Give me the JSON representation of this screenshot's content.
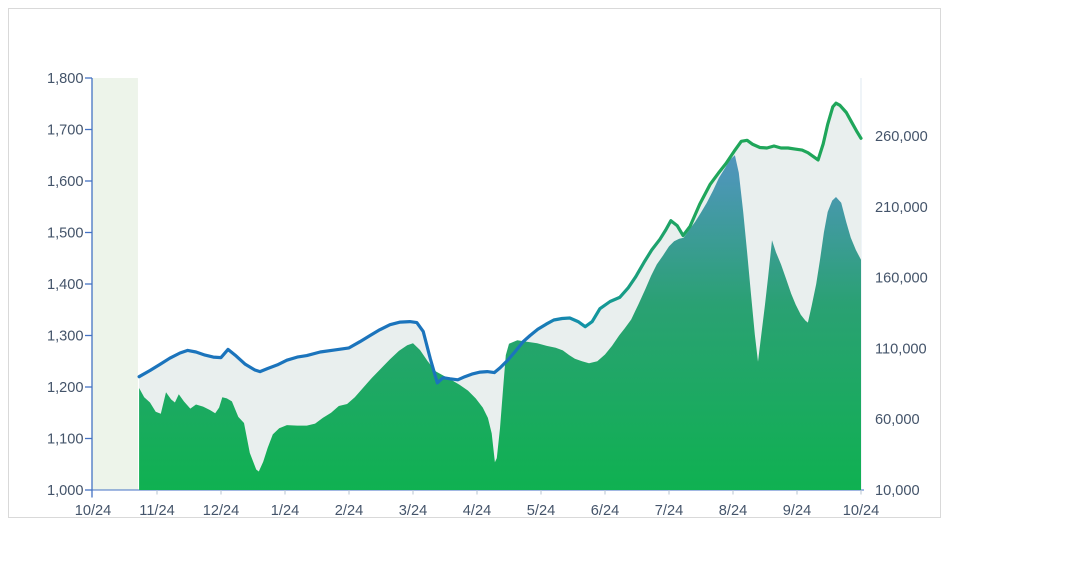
{
  "window": {
    "type": "excel-style-combo-chart",
    "title": ""
  },
  "colors": {
    "frame_border": "#d9d9d9",
    "axis_line_blue": "#4472c4",
    "axis_text": "#44546a",
    "month_tick": "#b7c4d2",
    "right_edge_line": "#dfe9f2",
    "highlight_band_fill": "#edf4ea",
    "line_fill_pale": "#e9efee",
    "line_blue": "#1b74bc",
    "line_teal": "#1295a5",
    "line_green": "#1fa65a",
    "area_gradient_top": "#6691d3",
    "area_gradient_upper": "#4b97b4",
    "area_gradient_mid": "#2aa173",
    "area_gradient_bottom": "#0fb151"
  },
  "chart_data": {
    "type": "combo",
    "title": "",
    "x_axis": {
      "labels": [
        "10/24",
        "11/24",
        "12/24",
        "1/24",
        "2/24",
        "3/24",
        "4/24",
        "5/24",
        "6/24",
        "7/24",
        "8/24",
        "9/24",
        "10/24"
      ],
      "range_months": [
        0,
        12
      ]
    },
    "y_axis_left": {
      "min": 1000,
      "max": 1800,
      "step": 100,
      "labels": [
        "1,000",
        "1,100",
        "1,200",
        "1,300",
        "1,400",
        "1,500",
        "1,600",
        "1,700",
        "1,800"
      ]
    },
    "y_axis_right": {
      "min": 10000,
      "step": 50000,
      "labels": [
        "10,000",
        "60,000",
        "110,000",
        "160,000",
        "210,000",
        "260,000"
      ]
    },
    "highlight_band": {
      "start_month": 0,
      "end_month": 0.71
    },
    "grid": "off",
    "legend": "none",
    "series": [
      {
        "name": "price-line",
        "type": "line",
        "axis": "left",
        "stroke": "gradient-blue-to-green",
        "fill_under": "pale",
        "points": [
          [
            0.72,
            1220
          ],
          [
            0.89,
            1232
          ],
          [
            1.05,
            1244
          ],
          [
            1.2,
            1256
          ],
          [
            1.36,
            1266
          ],
          [
            1.48,
            1271
          ],
          [
            1.61,
            1268
          ],
          [
            1.75,
            1262
          ],
          [
            1.88,
            1258
          ],
          [
            2.0,
            1257
          ],
          [
            2.11,
            1273
          ],
          [
            2.22,
            1262
          ],
          [
            2.38,
            1244
          ],
          [
            2.53,
            1233
          ],
          [
            2.61,
            1230
          ],
          [
            2.73,
            1236
          ],
          [
            2.88,
            1243
          ],
          [
            3.03,
            1252
          ],
          [
            3.19,
            1258
          ],
          [
            3.34,
            1261
          ],
          [
            3.55,
            1268
          ],
          [
            3.78,
            1272
          ],
          [
            4.0,
            1276
          ],
          [
            4.17,
            1288
          ],
          [
            4.33,
            1300
          ],
          [
            4.48,
            1311
          ],
          [
            4.64,
            1321
          ],
          [
            4.8,
            1326
          ],
          [
            4.95,
            1327
          ],
          [
            5.06,
            1325
          ],
          [
            5.16,
            1308
          ],
          [
            5.27,
            1255
          ],
          [
            5.38,
            1208
          ],
          [
            5.47,
            1218
          ],
          [
            5.58,
            1216
          ],
          [
            5.7,
            1214
          ],
          [
            5.81,
            1220
          ],
          [
            5.92,
            1225
          ],
          [
            6.05,
            1229
          ],
          [
            6.16,
            1230
          ],
          [
            6.27,
            1228
          ],
          [
            6.36,
            1237
          ],
          [
            6.48,
            1252
          ],
          [
            6.59,
            1268
          ],
          [
            6.72,
            1288
          ],
          [
            6.83,
            1300
          ],
          [
            6.95,
            1312
          ],
          [
            7.08,
            1322
          ],
          [
            7.2,
            1330
          ],
          [
            7.33,
            1333
          ],
          [
            7.45,
            1334
          ],
          [
            7.58,
            1327
          ],
          [
            7.69,
            1317
          ],
          [
            7.8,
            1327
          ],
          [
            7.92,
            1352
          ],
          [
            8.08,
            1366
          ],
          [
            8.23,
            1374
          ],
          [
            8.36,
            1392
          ],
          [
            8.48,
            1414
          ],
          [
            8.61,
            1442
          ],
          [
            8.73,
            1466
          ],
          [
            8.86,
            1487
          ],
          [
            8.95,
            1505
          ],
          [
            9.03,
            1523
          ],
          [
            9.13,
            1513
          ],
          [
            9.22,
            1494
          ],
          [
            9.33,
            1512
          ],
          [
            9.48,
            1555
          ],
          [
            9.64,
            1593
          ],
          [
            9.77,
            1615
          ],
          [
            9.89,
            1634
          ],
          [
            10.02,
            1658
          ],
          [
            10.13,
            1677
          ],
          [
            10.22,
            1679
          ],
          [
            10.31,
            1671
          ],
          [
            10.42,
            1665
          ],
          [
            10.53,
            1664
          ],
          [
            10.64,
            1668
          ],
          [
            10.75,
            1664
          ],
          [
            10.86,
            1664
          ],
          [
            10.97,
            1662
          ],
          [
            11.08,
            1660
          ],
          [
            11.17,
            1655
          ],
          [
            11.25,
            1648
          ],
          [
            11.33,
            1641
          ],
          [
            11.41,
            1672
          ],
          [
            11.48,
            1710
          ],
          [
            11.56,
            1744
          ],
          [
            11.61,
            1751
          ],
          [
            11.67,
            1747
          ],
          [
            11.77,
            1733
          ],
          [
            11.86,
            1713
          ],
          [
            11.94,
            1695
          ],
          [
            12.0,
            1683
          ]
        ]
      },
      {
        "name": "volume-area",
        "type": "area",
        "axis": "right",
        "fill": "gradient-green-blue",
        "points": [
          [
            0.72,
            82000
          ],
          [
            0.8,
            75500
          ],
          [
            0.89,
            71800
          ],
          [
            0.98,
            65300
          ],
          [
            1.06,
            63800
          ],
          [
            1.14,
            79100
          ],
          [
            1.22,
            74000
          ],
          [
            1.28,
            71800
          ],
          [
            1.34,
            77600
          ],
          [
            1.42,
            72600
          ],
          [
            1.52,
            67500
          ],
          [
            1.61,
            70400
          ],
          [
            1.72,
            68900
          ],
          [
            1.83,
            66400
          ],
          [
            1.91,
            64200
          ],
          [
            1.97,
            68200
          ],
          [
            2.02,
            75500
          ],
          [
            2.09,
            74700
          ],
          [
            2.17,
            72600
          ],
          [
            2.27,
            61600
          ],
          [
            2.36,
            57300
          ],
          [
            2.45,
            36200
          ],
          [
            2.55,
            24500
          ],
          [
            2.59,
            23100
          ],
          [
            2.66,
            30000
          ],
          [
            2.73,
            39800
          ],
          [
            2.81,
            49300
          ],
          [
            2.91,
            53600
          ],
          [
            3.03,
            55800
          ],
          [
            3.19,
            55500
          ],
          [
            3.34,
            55500
          ],
          [
            3.47,
            56900
          ],
          [
            3.59,
            60900
          ],
          [
            3.72,
            64600
          ],
          [
            3.84,
            69300
          ],
          [
            3.97,
            70700
          ],
          [
            4.09,
            75500
          ],
          [
            4.23,
            82700
          ],
          [
            4.36,
            89300
          ],
          [
            4.5,
            95800
          ],
          [
            4.64,
            102400
          ],
          [
            4.78,
            108200
          ],
          [
            4.91,
            112200
          ],
          [
            5.0,
            113700
          ],
          [
            5.11,
            108900
          ],
          [
            5.23,
            100900
          ],
          [
            5.36,
            93700
          ],
          [
            5.48,
            90700
          ],
          [
            5.61,
            87500
          ],
          [
            5.73,
            84200
          ],
          [
            5.86,
            80200
          ],
          [
            5.98,
            74700
          ],
          [
            6.09,
            68200
          ],
          [
            6.17,
            60900
          ],
          [
            6.23,
            50000
          ],
          [
            6.28,
            29600
          ],
          [
            6.31,
            32500
          ],
          [
            6.36,
            53600
          ],
          [
            6.41,
            82700
          ],
          [
            6.45,
            105300
          ],
          [
            6.5,
            113300
          ],
          [
            6.63,
            115800
          ],
          [
            6.78,
            114700
          ],
          [
            6.94,
            113700
          ],
          [
            7.09,
            111800
          ],
          [
            7.23,
            110400
          ],
          [
            7.34,
            108600
          ],
          [
            7.44,
            105300
          ],
          [
            7.53,
            102700
          ],
          [
            7.64,
            100900
          ],
          [
            7.75,
            99500
          ],
          [
            7.88,
            100900
          ],
          [
            8.0,
            105700
          ],
          [
            8.11,
            111800
          ],
          [
            8.22,
            119100
          ],
          [
            8.31,
            124200
          ],
          [
            8.41,
            130400
          ],
          [
            8.52,
            140900
          ],
          [
            8.63,
            151800
          ],
          [
            8.72,
            161300
          ],
          [
            8.81,
            169300
          ],
          [
            8.91,
            175800
          ],
          [
            9.0,
            182000
          ],
          [
            9.08,
            185700
          ],
          [
            9.16,
            187500
          ],
          [
            9.23,
            188200
          ],
          [
            9.31,
            193300
          ],
          [
            9.41,
            199500
          ],
          [
            9.5,
            206000
          ],
          [
            9.59,
            212900
          ],
          [
            9.69,
            221700
          ],
          [
            9.78,
            230400
          ],
          [
            9.88,
            237700
          ],
          [
            9.95,
            243100
          ],
          [
            10.03,
            246400
          ],
          [
            10.09,
            234000
          ],
          [
            10.16,
            206400
          ],
          [
            10.22,
            178000
          ],
          [
            10.28,
            148900
          ],
          [
            10.34,
            119900
          ],
          [
            10.39,
            100600
          ],
          [
            10.44,
            119100
          ],
          [
            10.5,
            140900
          ],
          [
            10.55,
            160900
          ],
          [
            10.61,
            186400
          ],
          [
            10.67,
            178000
          ],
          [
            10.75,
            169300
          ],
          [
            10.83,
            159100
          ],
          [
            10.91,
            148600
          ],
          [
            10.98,
            140900
          ],
          [
            11.06,
            133700
          ],
          [
            11.13,
            129700
          ],
          [
            11.17,
            128200
          ],
          [
            11.23,
            140200
          ],
          [
            11.3,
            155500
          ],
          [
            11.36,
            172600
          ],
          [
            11.42,
            191900
          ],
          [
            11.48,
            206400
          ],
          [
            11.55,
            214400
          ],
          [
            11.61,
            216900
          ],
          [
            11.69,
            212900
          ],
          [
            11.77,
            199100
          ],
          [
            11.84,
            188200
          ],
          [
            11.92,
            179500
          ],
          [
            12.0,
            172600
          ]
        ]
      }
    ]
  }
}
